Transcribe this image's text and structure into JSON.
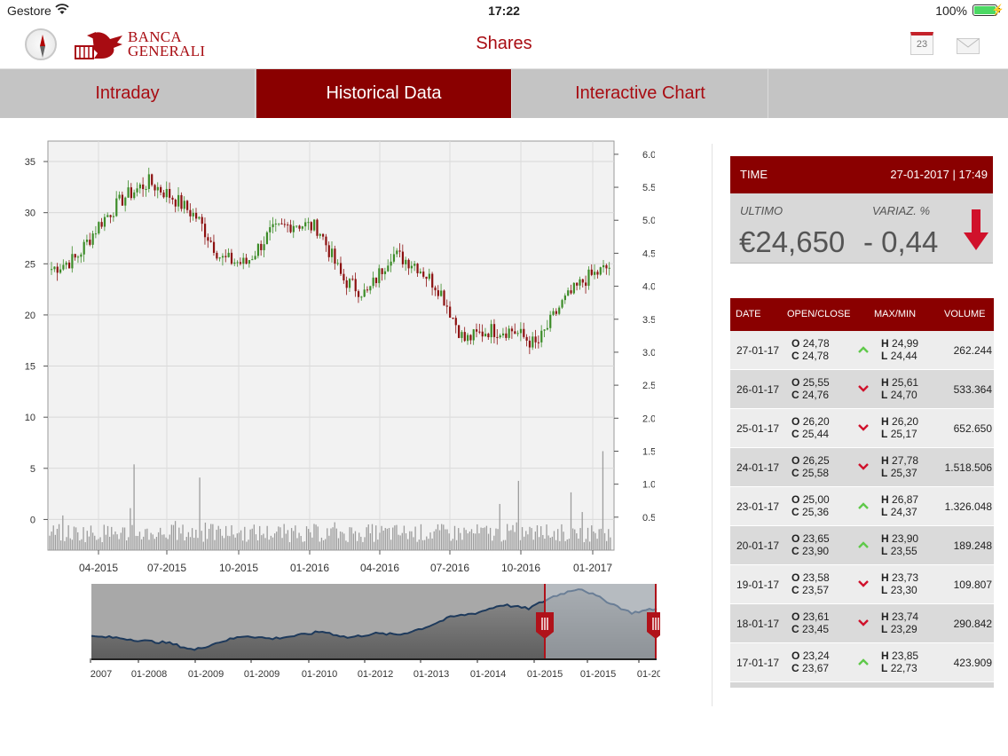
{
  "status_bar": {
    "carrier": "Gestore",
    "time": "17:22",
    "battery": "100%"
  },
  "header": {
    "title": "Shares",
    "logo_line1": "BANCA",
    "logo_line2": "GENERALI",
    "calendar_day": "23"
  },
  "tabs": [
    {
      "label": "Intraday",
      "active": false
    },
    {
      "label": "Historical Data",
      "active": true
    },
    {
      "label": "Interactive Chart",
      "active": false
    }
  ],
  "quote": {
    "time_label": "TIME",
    "time_value": "27-01-2017 | 17:49",
    "last_label": "ULTIMO",
    "change_label": "VARIAZ. %",
    "last_value": "€24,650",
    "change_value": "- 0,44",
    "direction": "down"
  },
  "table": {
    "headers": {
      "date": "DATE",
      "open_close": "OPEN/CLOSE",
      "max_min": "MAX/MIN",
      "volume": "VOLUME"
    },
    "rows": [
      {
        "date": "27-01-17",
        "o": "24,78",
        "c": "24,78",
        "h": "24,99",
        "l": "24,44",
        "vol": "262.244",
        "dir": "up"
      },
      {
        "date": "26-01-17",
        "o": "25,55",
        "c": "24,76",
        "h": "25,61",
        "l": "24,70",
        "vol": "533.364",
        "dir": "down"
      },
      {
        "date": "25-01-17",
        "o": "26,20",
        "c": "25,44",
        "h": "26,20",
        "l": "25,17",
        "vol": "652.650",
        "dir": "down"
      },
      {
        "date": "24-01-17",
        "o": "26,25",
        "c": "25,58",
        "h": "27,78",
        "l": "25,37",
        "vol": "1.518.506",
        "dir": "down"
      },
      {
        "date": "23-01-17",
        "o": "25,00",
        "c": "25,36",
        "h": "26,87",
        "l": "24,37",
        "vol": "1.326.048",
        "dir": "up"
      },
      {
        "date": "20-01-17",
        "o": "23,65",
        "c": "23,90",
        "h": "23,90",
        "l": "23,55",
        "vol": "189.248",
        "dir": "up"
      },
      {
        "date": "19-01-17",
        "o": "23,58",
        "c": "23,57",
        "h": "23,73",
        "l": "23,30",
        "vol": "109.807",
        "dir": "down"
      },
      {
        "date": "18-01-17",
        "o": "23,61",
        "c": "23,45",
        "h": "23,74",
        "l": "23,29",
        "vol": "290.842",
        "dir": "down"
      },
      {
        "date": "17-01-17",
        "o": "23,24",
        "c": "23,67",
        "h": "23,85",
        "l": "22,73",
        "vol": "423.909",
        "dir": "up"
      }
    ]
  },
  "colors": {
    "brand": "#8a0000",
    "logo": "#a80c12",
    "up": "#5fc94a",
    "down": "#d0112b",
    "candle_up": "#3c8c28",
    "candle_down": "#8c1010"
  },
  "chart_data": [
    {
      "type": "candlestick",
      "title": "",
      "xlabel": "",
      "ylabel": "",
      "price_ylim": [
        -3,
        37
      ],
      "price_ticks": [
        "35",
        "30",
        "25",
        "20",
        "15",
        "10",
        "5",
        "0"
      ],
      "volume_ylim": [
        0,
        6200000
      ],
      "volume_ticks": [
        "6.0M",
        "5.5M",
        "5.0M",
        "4.5M",
        "4.0M",
        "3.5M",
        "3.0M",
        "2.5M",
        "2.0M",
        "1.5M",
        "1.0M",
        "0.5M"
      ],
      "x_ticks": [
        "04-2015",
        "07-2015",
        "10-2015",
        "01-2016",
        "04-2016",
        "07-2016",
        "10-2016",
        "01-2017"
      ],
      "price_series": {
        "x": [
          "2015-02",
          "2015-03",
          "2015-04",
          "2015-05",
          "2015-06",
          "2015-07",
          "2015-08",
          "2015-09",
          "2015-10",
          "2015-11",
          "2015-12",
          "2016-01",
          "2016-02",
          "2016-03",
          "2016-04",
          "2016-05",
          "2016-06",
          "2016-07",
          "2016-08",
          "2016-09",
          "2016-10",
          "2016-11",
          "2016-12",
          "2017-01"
        ],
        "values": [
          24.5,
          25.5,
          29,
          31.5,
          33,
          31.5,
          29.5,
          25.5,
          25,
          28,
          29,
          28.5,
          23.5,
          22,
          26,
          25,
          22.5,
          17.5,
          18.5,
          18.5,
          17,
          21,
          23.5,
          24.7
        ]
      },
      "grid": true
    },
    {
      "type": "area",
      "title": "",
      "x_ticks": [
        "2007",
        "01-2008",
        "01-2009",
        "01-2009",
        "01-2010",
        "01-2012",
        "01-2013",
        "01-2014",
        "01-2015",
        "01-2015",
        "01-20"
      ],
      "values": [
        10.5,
        10,
        8.5,
        7.5,
        4,
        8,
        11,
        9.5,
        11,
        13,
        10,
        12,
        11.5,
        15,
        20,
        22,
        26,
        24,
        30,
        34,
        28,
        22,
        24
      ],
      "selected_range": "01-2015 – 01-2017"
    }
  ]
}
